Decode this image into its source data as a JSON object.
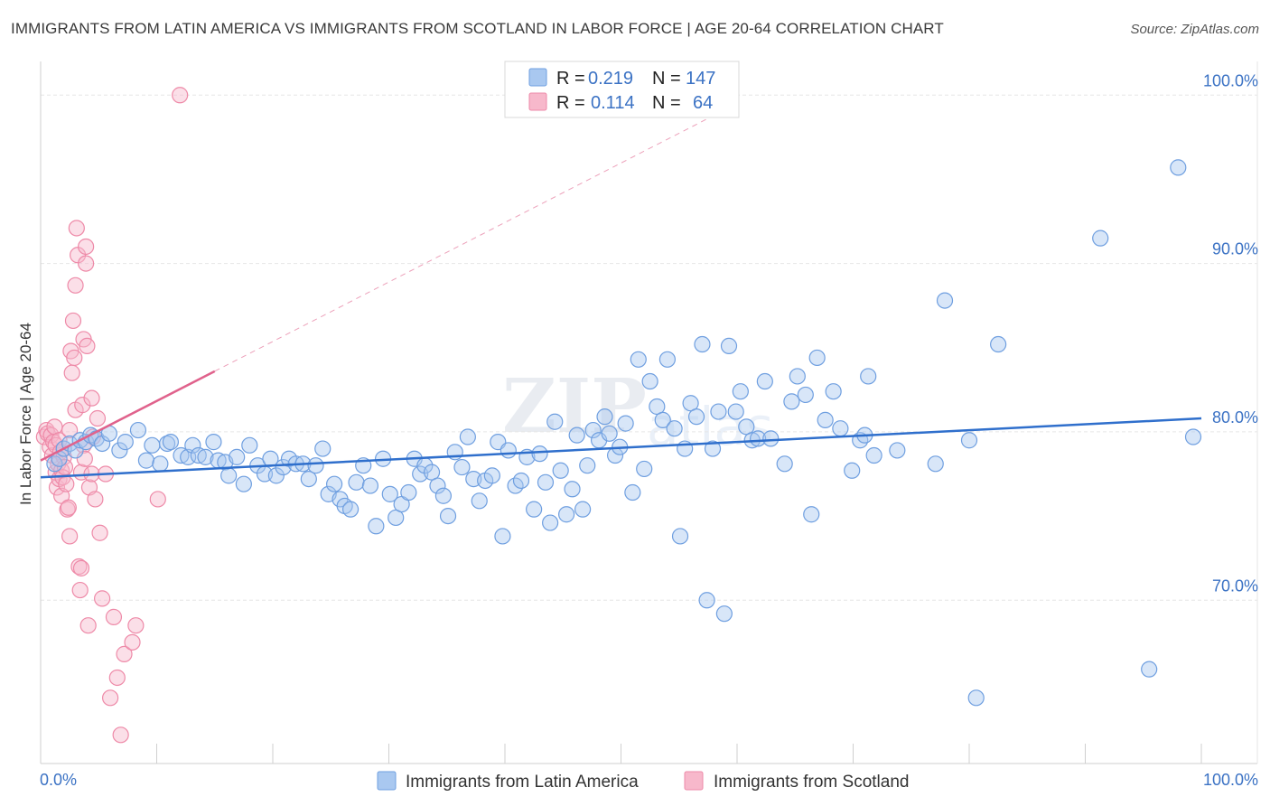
{
  "title": "IMMIGRANTS FROM LATIN AMERICA VS IMMIGRANTS FROM SCOTLAND IN LABOR FORCE | AGE 20-64 CORRELATION CHART",
  "source": "Source: ZipAtlas.com",
  "colors": {
    "blue_fill": "#a9c8f0",
    "blue_stroke": "#6f9fe0",
    "blue_line": "#2f6fcc",
    "pink_fill": "#f7b8cb",
    "pink_stroke": "#ee8aa8",
    "pink_line": "#e0628c",
    "grid": "#e6e6e6",
    "accent_text": "#3b72c4"
  },
  "legend": {
    "r_label": "R =",
    "n_label": "N =",
    "rows": [
      {
        "r": "0.219",
        "n": "147"
      },
      {
        "r": "0.114",
        "n": "64"
      }
    ]
  },
  "chart_data": {
    "type": "scatter",
    "title": "IMMIGRANTS FROM LATIN AMERICA VS IMMIGRANTS FROM SCOTLAND IN LABOR FORCE | AGE 20-64 CORRELATION CHART",
    "xlabel": "",
    "ylabel": "In Labor Force | Age 20-64",
    "xlim": [
      0,
      100
    ],
    "ylim": [
      60.3,
      102
    ],
    "x_tick_labels": [
      "0.0%",
      "100.0%"
    ],
    "y_ticks": [
      70,
      80,
      90,
      100
    ],
    "y_tick_labels": [
      "70.0%",
      "80.0%",
      "90.0%",
      "100.0%"
    ],
    "grid": true,
    "legend_position": "bottom-center",
    "series": [
      {
        "name": "Immigrants from Latin America",
        "color": "#a9c8f0",
        "trend": {
          "x": [
            0,
            100
          ],
          "y": [
            77.3,
            80.8
          ]
        },
        "points": [
          [
            1.2,
            78.1
          ],
          [
            1.6,
            78.4
          ],
          [
            2.0,
            79.0
          ],
          [
            2.5,
            79.3
          ],
          [
            3.0,
            78.9
          ],
          [
            3.4,
            79.5
          ],
          [
            3.9,
            79.4
          ],
          [
            4.3,
            79.8
          ],
          [
            4.8,
            79.6
          ],
          [
            5.3,
            79.3
          ],
          [
            5.9,
            79.9
          ],
          [
            6.8,
            78.9
          ],
          [
            7.3,
            79.4
          ],
          [
            8.4,
            80.1
          ],
          [
            9.1,
            78.3
          ],
          [
            9.6,
            79.2
          ],
          [
            10.3,
            78.1
          ],
          [
            10.9,
            79.3
          ],
          [
            11.2,
            79.4
          ],
          [
            12.1,
            78.6
          ],
          [
            12.7,
            78.5
          ],
          [
            13.1,
            79.2
          ],
          [
            13.6,
            78.6
          ],
          [
            14.2,
            78.5
          ],
          [
            14.9,
            79.4
          ],
          [
            15.3,
            78.3
          ],
          [
            15.9,
            78.2
          ],
          [
            16.2,
            77.4
          ],
          [
            16.9,
            78.5
          ],
          [
            17.5,
            76.9
          ],
          [
            18.0,
            79.2
          ],
          [
            18.7,
            78.0
          ],
          [
            19.3,
            77.5
          ],
          [
            19.8,
            78.4
          ],
          [
            20.3,
            77.4
          ],
          [
            20.9,
            77.9
          ],
          [
            21.4,
            78.4
          ],
          [
            22.0,
            78.1
          ],
          [
            22.6,
            78.1
          ],
          [
            23.1,
            77.2
          ],
          [
            23.7,
            78.0
          ],
          [
            24.3,
            79.0
          ],
          [
            24.8,
            76.3
          ],
          [
            25.3,
            76.9
          ],
          [
            25.8,
            76.0
          ],
          [
            26.2,
            75.6
          ],
          [
            26.7,
            75.4
          ],
          [
            27.2,
            77.0
          ],
          [
            27.8,
            78.0
          ],
          [
            28.4,
            76.8
          ],
          [
            28.9,
            74.4
          ],
          [
            29.5,
            78.4
          ],
          [
            30.1,
            76.3
          ],
          [
            30.6,
            74.9
          ],
          [
            31.1,
            75.7
          ],
          [
            31.7,
            76.4
          ],
          [
            32.2,
            78.4
          ],
          [
            32.7,
            77.5
          ],
          [
            33.1,
            78.0
          ],
          [
            33.7,
            77.6
          ],
          [
            34.2,
            76.8
          ],
          [
            34.7,
            76.2
          ],
          [
            35.1,
            75.0
          ],
          [
            35.7,
            78.8
          ],
          [
            36.3,
            77.9
          ],
          [
            36.8,
            79.7
          ],
          [
            37.3,
            77.2
          ],
          [
            37.8,
            75.9
          ],
          [
            38.3,
            77.1
          ],
          [
            38.9,
            77.4
          ],
          [
            39.4,
            79.4
          ],
          [
            39.8,
            73.8
          ],
          [
            40.3,
            78.9
          ],
          [
            40.9,
            76.8
          ],
          [
            41.4,
            77.1
          ],
          [
            41.9,
            78.5
          ],
          [
            42.5,
            75.4
          ],
          [
            43.0,
            78.7
          ],
          [
            43.5,
            77.0
          ],
          [
            43.9,
            74.6
          ],
          [
            44.3,
            80.6
          ],
          [
            44.8,
            77.7
          ],
          [
            45.3,
            75.1
          ],
          [
            45.8,
            76.6
          ],
          [
            46.2,
            79.8
          ],
          [
            46.7,
            75.4
          ],
          [
            47.1,
            78.0
          ],
          [
            47.6,
            80.1
          ],
          [
            48.1,
            79.5
          ],
          [
            48.6,
            80.9
          ],
          [
            49.0,
            79.9
          ],
          [
            49.5,
            78.6
          ],
          [
            49.9,
            79.1
          ],
          [
            50.4,
            80.5
          ],
          [
            51.0,
            76.4
          ],
          [
            51.5,
            84.3
          ],
          [
            52.0,
            77.8
          ],
          [
            52.5,
            83.0
          ],
          [
            53.1,
            81.5
          ],
          [
            53.6,
            80.7
          ],
          [
            54.0,
            84.3
          ],
          [
            54.6,
            80.2
          ],
          [
            55.1,
            73.8
          ],
          [
            55.5,
            79.0
          ],
          [
            56.0,
            81.7
          ],
          [
            56.5,
            80.9
          ],
          [
            57.0,
            85.2
          ],
          [
            57.4,
            70.0
          ],
          [
            57.9,
            79.0
          ],
          [
            58.4,
            81.2
          ],
          [
            58.9,
            69.2
          ],
          [
            59.3,
            85.1
          ],
          [
            59.9,
            81.2
          ],
          [
            60.3,
            82.4
          ],
          [
            60.8,
            80.3
          ],
          [
            61.3,
            79.5
          ],
          [
            61.8,
            79.6
          ],
          [
            62.4,
            83.0
          ],
          [
            62.9,
            79.6
          ],
          [
            64.1,
            78.1
          ],
          [
            64.7,
            81.8
          ],
          [
            65.2,
            83.3
          ],
          [
            65.9,
            82.2
          ],
          [
            66.4,
            75.1
          ],
          [
            66.9,
            84.4
          ],
          [
            67.6,
            80.7
          ],
          [
            68.3,
            82.4
          ],
          [
            68.9,
            80.2
          ],
          [
            69.9,
            77.7
          ],
          [
            70.6,
            79.5
          ],
          [
            71.0,
            79.8
          ],
          [
            71.3,
            83.3
          ],
          [
            71.8,
            78.6
          ],
          [
            73.8,
            78.9
          ],
          [
            77.1,
            78.1
          ],
          [
            77.9,
            87.8
          ],
          [
            80.0,
            79.5
          ],
          [
            80.6,
            64.2
          ],
          [
            82.5,
            85.2
          ],
          [
            91.3,
            91.5
          ],
          [
            95.5,
            65.9
          ],
          [
            98.0,
            95.7
          ],
          [
            99.3,
            79.7
          ]
        ]
      },
      {
        "name": "Immigrants from Scotland",
        "color": "#f7b8cb",
        "trend": {
          "x": [
            0,
            15
          ],
          "y": [
            78.3,
            83.6
          ]
        },
        "points": [
          [
            0.3,
            79.7
          ],
          [
            0.5,
            80.1
          ],
          [
            0.6,
            79.9
          ],
          [
            0.8,
            79.1
          ],
          [
            0.9,
            79.8
          ],
          [
            1.0,
            78.6
          ],
          [
            1.1,
            79.4
          ],
          [
            1.2,
            80.3
          ],
          [
            1.3,
            77.6
          ],
          [
            1.3,
            79.2
          ],
          [
            1.4,
            76.7
          ],
          [
            1.5,
            78.1
          ],
          [
            1.6,
            77.2
          ],
          [
            1.6,
            79.5
          ],
          [
            1.7,
            78.8
          ],
          [
            1.8,
            77.7
          ],
          [
            1.8,
            76.2
          ],
          [
            1.9,
            77.3
          ],
          [
            2.0,
            79.0
          ],
          [
            2.0,
            78.5
          ],
          [
            2.1,
            77.9
          ],
          [
            2.2,
            76.9
          ],
          [
            2.3,
            75.4
          ],
          [
            2.4,
            75.5
          ],
          [
            2.5,
            73.8
          ],
          [
            2.5,
            80.1
          ],
          [
            2.6,
            84.8
          ],
          [
            2.7,
            83.5
          ],
          [
            2.8,
            86.6
          ],
          [
            2.9,
            84.4
          ],
          [
            3.0,
            88.7
          ],
          [
            3.0,
            81.3
          ],
          [
            3.1,
            92.1
          ],
          [
            3.2,
            90.5
          ],
          [
            3.3,
            72.0
          ],
          [
            3.4,
            70.6
          ],
          [
            3.5,
            71.9
          ],
          [
            3.5,
            77.6
          ],
          [
            3.6,
            81.6
          ],
          [
            3.7,
            79.2
          ],
          [
            3.7,
            85.5
          ],
          [
            3.8,
            78.4
          ],
          [
            3.9,
            91.0
          ],
          [
            3.9,
            90.0
          ],
          [
            4.0,
            85.1
          ],
          [
            4.1,
            68.5
          ],
          [
            4.2,
            76.7
          ],
          [
            4.4,
            77.5
          ],
          [
            4.4,
            82.0
          ],
          [
            4.5,
            79.7
          ],
          [
            4.7,
            76.0
          ],
          [
            4.9,
            80.8
          ],
          [
            5.1,
            74.0
          ],
          [
            5.3,
            70.1
          ],
          [
            5.6,
            77.5
          ],
          [
            6.0,
            64.2
          ],
          [
            6.3,
            69.0
          ],
          [
            6.6,
            65.4
          ],
          [
            6.9,
            62.0
          ],
          [
            7.2,
            66.8
          ],
          [
            7.9,
            67.5
          ],
          [
            8.2,
            68.5
          ],
          [
            10.1,
            76.0
          ],
          [
            12.0,
            100.0
          ]
        ]
      }
    ]
  },
  "bottom_legend": [
    {
      "label": "Immigrants from Latin America"
    },
    {
      "label": "Immigrants from Scotland"
    }
  ]
}
